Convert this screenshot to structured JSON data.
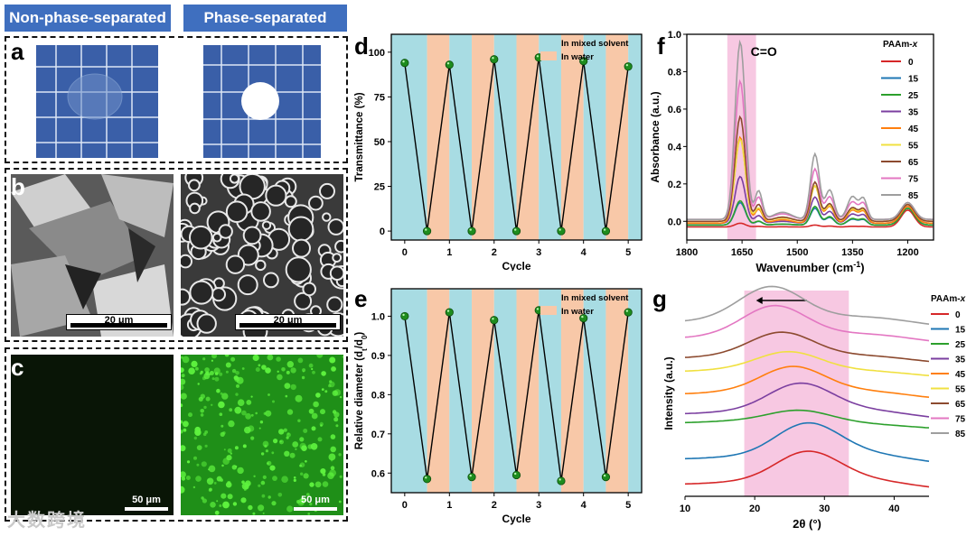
{
  "headers": {
    "left": "Non-phase-separated",
    "right": "Phase-separated"
  },
  "panel_labels": {
    "a": "a",
    "b": "b",
    "c": "c",
    "d": "d",
    "e": "e",
    "f": "f",
    "g": "g"
  },
  "scale_bars": {
    "sem_left": "20 μm",
    "sem_right": "20 μm",
    "fluor_left": "50 μm",
    "fluor_right": "50 μm"
  },
  "watermark": "大数跨境",
  "colors": {
    "header_bg": "#3f6fbf",
    "mixed": "#a8dce3",
    "water": "#f8c8a8",
    "band": "#f4b6d8"
  },
  "chart_data": [
    {
      "id": "d",
      "type": "line",
      "xlabel": "Cycle",
      "ylabel": "Transmittance (%)",
      "xlim": [
        -0.3,
        5.3
      ],
      "ylim": [
        -5,
        110
      ],
      "xticks": [
        "0",
        "1",
        "2",
        "3",
        "4",
        "5"
      ],
      "yticks": [
        "0",
        "25",
        "50",
        "75",
        "100"
      ],
      "legend": [
        "In mixed solvent",
        "In water"
      ],
      "x": [
        0,
        0.5,
        1,
        1.5,
        2,
        2.5,
        3,
        3.5,
        4,
        4.5,
        5
      ],
      "values": [
        94,
        0,
        93,
        0,
        96,
        0,
        97,
        0,
        95,
        0,
        92
      ]
    },
    {
      "id": "e",
      "type": "line",
      "xlabel": "Cycle",
      "ylabel": "Relative diameter (d",
      "ylabel_sub": "t",
      "ylabel_mid": "/d",
      "ylabel_sub2": "0",
      "ylabel_end": ")",
      "xlim": [
        -0.3,
        5.3
      ],
      "ylim": [
        0.55,
        1.07
      ],
      "xticks": [
        "0",
        "1",
        "2",
        "3",
        "4",
        "5"
      ],
      "yticks": [
        "0.6",
        "0.7",
        "0.8",
        "0.9",
        "1.0"
      ],
      "legend": [
        "In mixed solvent",
        "In water"
      ],
      "x": [
        0,
        0.5,
        1,
        1.5,
        2,
        2.5,
        3,
        3.5,
        4,
        4.5,
        5
      ],
      "values": [
        1.0,
        0.585,
        1.01,
        0.59,
        0.99,
        0.595,
        1.015,
        0.58,
        0.995,
        0.59,
        1.01
      ]
    },
    {
      "id": "f",
      "type": "line",
      "xlabel": "Wavenumber (cm",
      "xlabel_sup": "-1",
      "xlabel_end": ")",
      "ylabel": "Absorbance (a.u.)",
      "xlim": [
        1800,
        1130
      ],
      "ylim": [
        -0.1,
        1.0
      ],
      "xticks": [
        "1800",
        "1650",
        "1500",
        "1350",
        "1200"
      ],
      "yticks": [
        "0.0",
        "0.2",
        "0.4",
        "0.6",
        "0.8",
        "1.0"
      ],
      "annotation": "C=O",
      "band": [
        1690,
        1612
      ],
      "legend_title": "PAAm-",
      "legend_title_x": "x",
      "series": [
        {
          "name": "0",
          "color": "#d62728",
          "peak": 0.02,
          "p2": 0.01,
          "base": -0.03
        },
        {
          "name": "15",
          "color": "#1f77b4",
          "peak": 0.12,
          "p2": 0.09,
          "base": -0.02
        },
        {
          "name": "25",
          "color": "#2ca02c",
          "peak": 0.13,
          "p2": 0.1,
          "base": -0.02
        },
        {
          "name": "35",
          "color": "#7b3fa0",
          "peak": 0.25,
          "p2": 0.14,
          "base": -0.01
        },
        {
          "name": "45",
          "color": "#ff7f0e",
          "peak": 0.46,
          "p2": 0.2,
          "base": -0.01
        },
        {
          "name": "55",
          "color": "#f0e040",
          "peak": 0.44,
          "p2": 0.19,
          "base": 0.0
        },
        {
          "name": "65",
          "color": "#8c4a2f",
          "peak": 0.56,
          "p2": 0.21,
          "base": 0.0
        },
        {
          "name": "75",
          "color": "#e377c2",
          "peak": 0.74,
          "p2": 0.27,
          "base": 0.01
        },
        {
          "name": "85",
          "color": "#9e9e9e",
          "peak": 0.95,
          "p2": 0.35,
          "base": 0.01
        }
      ]
    },
    {
      "id": "g",
      "type": "line",
      "xlabel": "2θ (°)",
      "ylabel": "Intensity (a.u.)",
      "xlim": [
        10,
        45
      ],
      "xticks": [
        "10",
        "20",
        "30",
        "40"
      ],
      "band": [
        18.5,
        33.5
      ],
      "legend_title": "PAAm-",
      "legend_title_x": "x",
      "series": [
        {
          "name": "0",
          "color": "#d62728",
          "offset": 0,
          "peak": 27.5,
          "height": 35
        },
        {
          "name": "15",
          "color": "#1f77b4",
          "offset": 28,
          "peak": 27.5,
          "height": 38
        },
        {
          "name": "25",
          "color": "#2ca02c",
          "offset": 68,
          "peak": 26.5,
          "height": 15
        },
        {
          "name": "35",
          "color": "#7b3fa0",
          "offset": 78,
          "peak": 26.5,
          "height": 33
        },
        {
          "name": "45",
          "color": "#ff7f0e",
          "offset": 100,
          "peak": 25.5,
          "height": 30
        },
        {
          "name": "55",
          "color": "#f0e040",
          "offset": 125,
          "peak": 25,
          "height": 22
        },
        {
          "name": "65",
          "color": "#8c4a2f",
          "offset": 140,
          "peak": 24,
          "height": 28
        },
        {
          "name": "75",
          "color": "#e377c2",
          "offset": 162,
          "peak": 23,
          "height": 35
        },
        {
          "name": "85",
          "color": "#9e9e9e",
          "offset": 180,
          "peak": 22.5,
          "height": 38
        }
      ]
    }
  ]
}
